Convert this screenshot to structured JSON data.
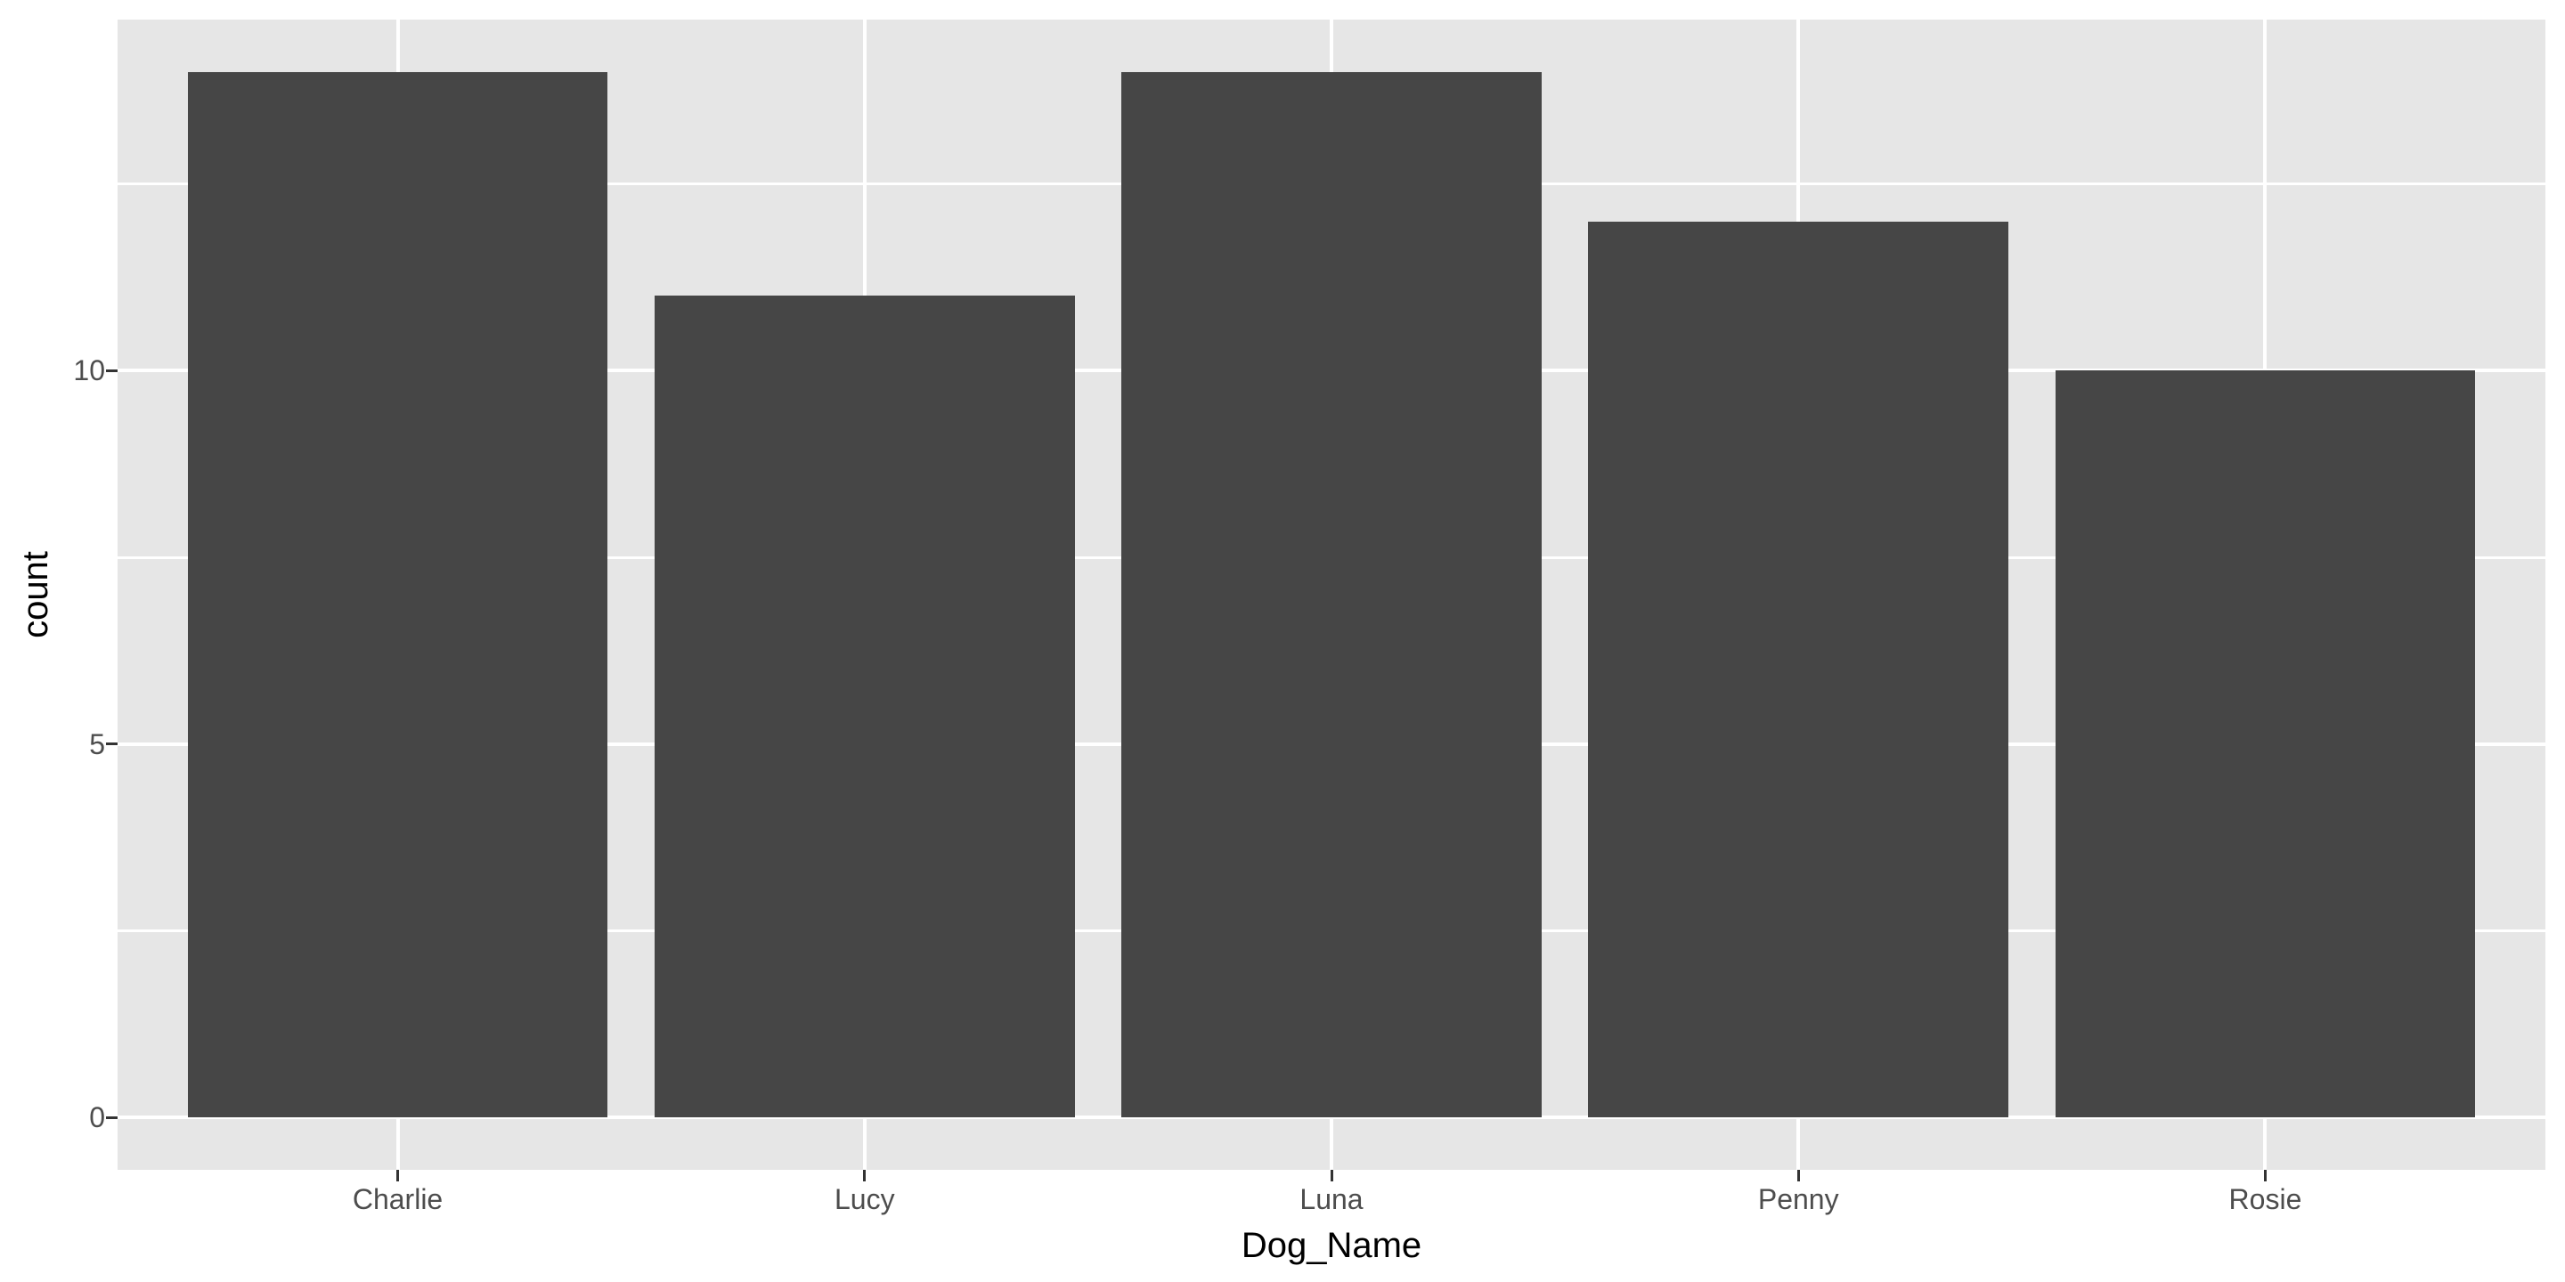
{
  "chart_data": {
    "type": "bar",
    "style": "ggplot2-theme-grey",
    "title": "",
    "xlabel": "Dog_Name",
    "ylabel": "count",
    "categories": [
      "Charlie",
      "Lucy",
      "Luna",
      "Penny",
      "Rosie"
    ],
    "values": [
      14,
      11,
      14,
      12,
      10
    ],
    "y_major_breaks": [
      0,
      5,
      10
    ],
    "y_major_labels": [
      "0",
      "5",
      "10"
    ],
    "y_minor_breaks": [
      2.5,
      7.5,
      12.5
    ],
    "ylim": [
      -0.7,
      14.7
    ],
    "x_domain": [
      0.4,
      5.6
    ],
    "bar_width_units": 0.9,
    "legend_position": "none",
    "grid": "white major+minor horizontal, white major vertical at category centers",
    "colors": {
      "bar_fill": "#464646",
      "panel_background": "#E6E6E6",
      "gridline": "#FFFFFF",
      "tick_mark": "#333333",
      "axis_text": "#4D4D4D",
      "axis_title": "#000000",
      "figure_background": "#FFFFFF"
    }
  }
}
